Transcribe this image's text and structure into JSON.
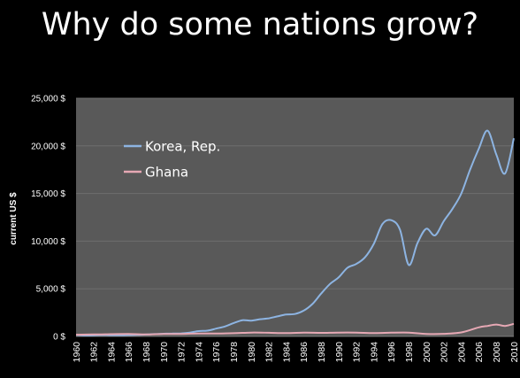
{
  "slide": {
    "title": "Why do some nations grow?"
  },
  "chart_data": {
    "type": "line",
    "title": "",
    "xlabel": "",
    "ylabel": "current US $",
    "xlim": [
      1960,
      2010
    ],
    "ylim": [
      0,
      25000
    ],
    "y_ticks": [
      0,
      5000,
      10000,
      15000,
      20000,
      25000
    ],
    "y_tick_labels": [
      "0 $",
      "5,000 $",
      "10,000 $",
      "15,000 $",
      "20,000 $",
      "25,000 $"
    ],
    "x_tick_labels": [
      "1960",
      "1962",
      "1964",
      "1966",
      "1968",
      "1970",
      "1972",
      "1974",
      "1976",
      "1978",
      "1980",
      "1982",
      "1984",
      "1986",
      "1988",
      "1990",
      "1992",
      "1994",
      "1996",
      "1998",
      "2000",
      "2002",
      "2004",
      "2006",
      "2008",
      "2010"
    ],
    "grid": true,
    "legend_position": "top-left",
    "background_color": "#595959",
    "grid_color": "#6e6e6e",
    "series": [
      {
        "name": "Korea, Rep.",
        "color": "#8db4e2",
        "x": [
          1960,
          1961,
          1962,
          1963,
          1964,
          1965,
          1966,
          1967,
          1968,
          1969,
          1970,
          1971,
          1972,
          1973,
          1974,
          1975,
          1976,
          1977,
          1978,
          1979,
          1980,
          1981,
          1982,
          1983,
          1984,
          1985,
          1986,
          1987,
          1988,
          1989,
          1990,
          1991,
          1992,
          1993,
          1994,
          1995,
          1996,
          1997,
          1998,
          1999,
          2000,
          2001,
          2002,
          2003,
          2004,
          2005,
          2006,
          2007,
          2008,
          2009,
          2010
        ],
        "values": [
          160,
          95,
          105,
          145,
          125,
          110,
          135,
          160,
          195,
          240,
          280,
          300,
          320,
          400,
          560,
          600,
          820,
          1040,
          1400,
          1700,
          1650,
          1800,
          1900,
          2100,
          2300,
          2350,
          2700,
          3400,
          4500,
          5500,
          6200,
          7200,
          7600,
          8300,
          9700,
          11800,
          12200,
          11200,
          7500,
          9800,
          11300,
          10600,
          12100,
          13400,
          15000,
          17500,
          19700,
          21600,
          19100,
          17100,
          20800
        ]
      },
      {
        "name": "Ghana",
        "color": "#e6a8b4",
        "x": [
          1960,
          1962,
          1964,
          1966,
          1968,
          1970,
          1972,
          1974,
          1976,
          1978,
          1980,
          1982,
          1984,
          1986,
          1988,
          1990,
          1992,
          1994,
          1996,
          1998,
          2000,
          2002,
          2004,
          2006,
          2007,
          2008,
          2009,
          2010
        ],
        "values": [
          180,
          200,
          230,
          250,
          200,
          250,
          260,
          300,
          300,
          330,
          400,
          380,
          340,
          390,
          370,
          400,
          400,
          350,
          390,
          400,
          260,
          270,
          420,
          950,
          1100,
          1250,
          1100,
          1320
        ]
      }
    ]
  }
}
